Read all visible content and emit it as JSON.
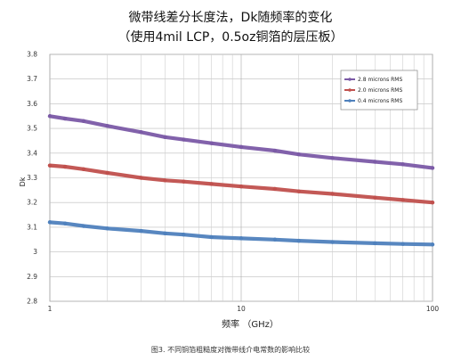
{
  "header": {
    "title": "微带线差分长度法，Dk随频率的变化",
    "subtitle": "（使用4mil LCP，0.5oz铜箔的层压板）"
  },
  "caption": "图3. 不同铜箔粗糙度对微带线介电常数的影响比较",
  "chart_data": {
    "type": "line",
    "xlabel": "频率 （GHz）",
    "ylabel": "Dk",
    "x_scale": "log",
    "xlim": [
      1,
      100
    ],
    "ylim": [
      2.8,
      3.8
    ],
    "y_ticks": [
      "2.8",
      "2.9",
      "3",
      "3.1",
      "3.2",
      "3.3",
      "3.4",
      "3.5",
      "3.6",
      "3.7",
      "3.8"
    ],
    "x_ticks": [
      "1",
      "10",
      "100"
    ],
    "grid": true,
    "legend_position": "top-right",
    "series": [
      {
        "name": "2.8 microns RMS",
        "color": "#7b5aa6",
        "x": [
          1,
          1.2,
          1.5,
          2,
          3,
          4,
          5,
          7,
          10,
          15,
          20,
          30,
          50,
          70,
          100
        ],
        "y": [
          3.55,
          3.54,
          3.53,
          3.51,
          3.485,
          3.465,
          3.455,
          3.44,
          3.425,
          3.41,
          3.395,
          3.38,
          3.365,
          3.355,
          3.34
        ]
      },
      {
        "name": "2.0 microns RMS",
        "color": "#c0504d",
        "x": [
          1,
          1.2,
          1.5,
          2,
          3,
          4,
          5,
          7,
          10,
          15,
          20,
          30,
          50,
          70,
          100
        ],
        "y": [
          3.35,
          3.345,
          3.335,
          3.32,
          3.3,
          3.29,
          3.285,
          3.275,
          3.265,
          3.255,
          3.245,
          3.235,
          3.22,
          3.21,
          3.2
        ]
      },
      {
        "name": "0.4 microns RMS",
        "color": "#4f81bd",
        "x": [
          1,
          1.2,
          1.5,
          2,
          3,
          4,
          5,
          7,
          10,
          15,
          20,
          30,
          50,
          70,
          100
        ],
        "y": [
          3.12,
          3.115,
          3.105,
          3.095,
          3.085,
          3.075,
          3.07,
          3.06,
          3.055,
          3.05,
          3.045,
          3.04,
          3.035,
          3.032,
          3.03
        ]
      }
    ]
  }
}
